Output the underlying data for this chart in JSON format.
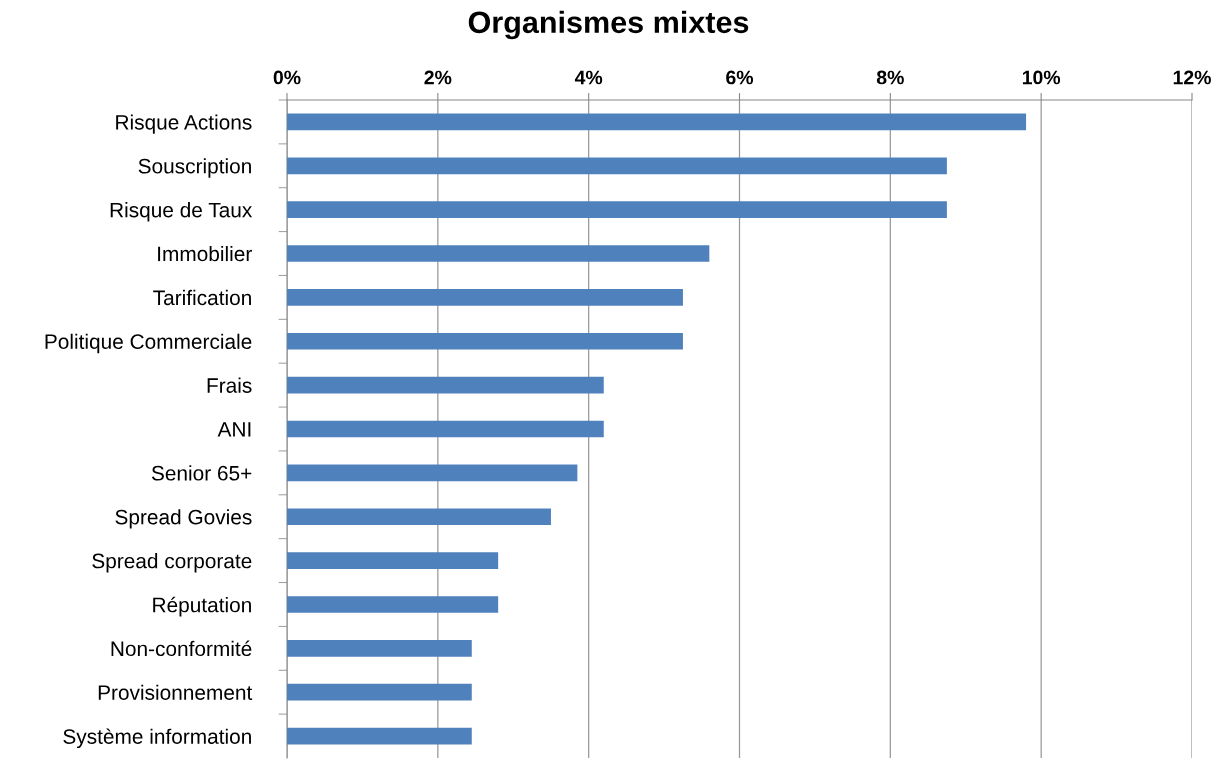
{
  "chart_data": {
    "type": "bar",
    "orientation": "horizontal",
    "title": "Organismes mixtes",
    "categories": [
      "Risque Actions",
      "Souscription",
      "Risque de Taux",
      "Immobilier",
      "Tarification",
      "Politique Commerciale",
      "Frais",
      "ANI",
      "Senior 65+",
      "Spread Govies",
      "Spread corporate",
      "Réputation",
      "Non-conformité",
      "Provisionnement",
      "Système information"
    ],
    "values": [
      9.8,
      8.75,
      8.75,
      5.6,
      5.25,
      5.25,
      4.2,
      4.2,
      3.85,
      3.5,
      2.8,
      2.8,
      2.45,
      2.45,
      2.45
    ],
    "color": "#4f81bd",
    "xlim": [
      0,
      12
    ],
    "xticks": [
      {
        "value": 0,
        "label": "0%"
      },
      {
        "value": 2,
        "label": "2%"
      },
      {
        "value": 4,
        "label": "4%"
      },
      {
        "value": 6,
        "label": "6%"
      },
      {
        "value": 8,
        "label": "8%"
      },
      {
        "value": 10,
        "label": "10%"
      },
      {
        "value": 12,
        "label": "12%"
      }
    ],
    "grid": "x",
    "legend": false
  }
}
